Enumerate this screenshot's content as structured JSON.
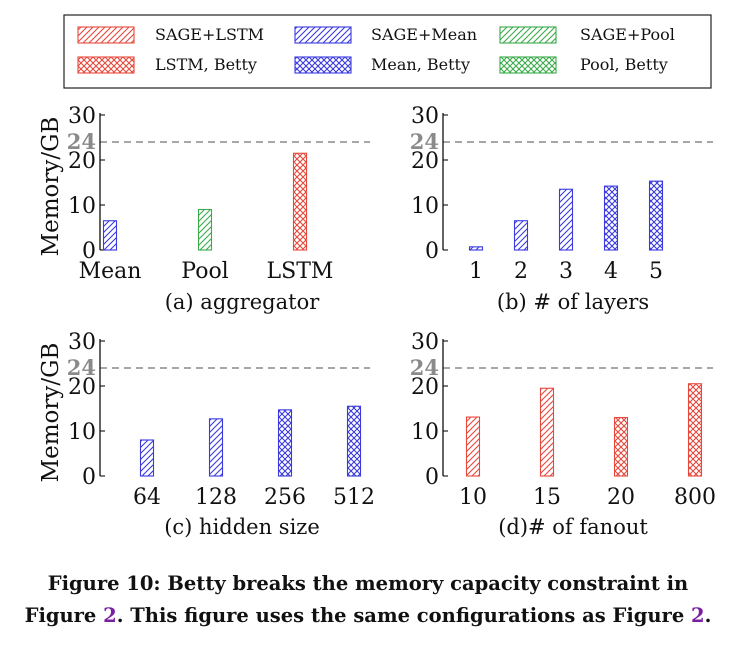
{
  "legend": {
    "items": [
      {
        "label": "SAGE+LSTM",
        "color": "#e8483c",
        "pattern": "diag"
      },
      {
        "label": "SAGE+Mean",
        "color": "#3a3ae0",
        "pattern": "diag"
      },
      {
        "label": "SAGE+Pool",
        "color": "#3aaa4a",
        "pattern": "diag"
      },
      {
        "label": "LSTM, Betty",
        "color": "#e8483c",
        "pattern": "cross"
      },
      {
        "label": "Mean, Betty",
        "color": "#3a3ae0",
        "pattern": "cross"
      },
      {
        "label": "Pool, Betty",
        "color": "#3aaa4a",
        "pattern": "cross"
      }
    ]
  },
  "chart_data": [
    {
      "type": "bar",
      "panel": "a",
      "subtitle": "(a) aggregator",
      "ylabel": "Memory/GB",
      "categories": [
        "Mean",
        "Pool",
        "LSTM"
      ],
      "ylim": [
        0,
        30
      ],
      "yticks": [
        0,
        10,
        20,
        30
      ],
      "capacity_line": 24,
      "bars": [
        {
          "category": "Mean",
          "value": 6.5,
          "color": "#3a3ae0",
          "pattern": "diag"
        },
        {
          "category": "Pool",
          "value": 9,
          "color": "#3aaa4a",
          "pattern": "diag"
        },
        {
          "category": "LSTM",
          "value": 21.5,
          "color": "#e8483c",
          "pattern": "cross"
        }
      ]
    },
    {
      "type": "bar",
      "panel": "b",
      "subtitle": "(b) # of layers",
      "ylabel": "",
      "categories": [
        "1",
        "2",
        "3",
        "4",
        "5"
      ],
      "ylim": [
        0,
        30
      ],
      "yticks": [
        0,
        10,
        20,
        30
      ],
      "capacity_line": 24,
      "bars": [
        {
          "category": "1",
          "value": 0.7,
          "color": "#3a3ae0",
          "pattern": "diag"
        },
        {
          "category": "2",
          "value": 6.5,
          "color": "#3a3ae0",
          "pattern": "diag"
        },
        {
          "category": "3",
          "value": 13.5,
          "color": "#3a3ae0",
          "pattern": "diag"
        },
        {
          "category": "4",
          "value": 14.2,
          "color": "#3a3ae0",
          "pattern": "cross"
        },
        {
          "category": "5",
          "value": 15.3,
          "color": "#3a3ae0",
          "pattern": "cross"
        }
      ]
    },
    {
      "type": "bar",
      "panel": "c",
      "subtitle": "(c) hidden size",
      "ylabel": "Memory/GB",
      "categories": [
        "64",
        "128",
        "256",
        "512"
      ],
      "ylim": [
        0,
        30
      ],
      "yticks": [
        0,
        10,
        20,
        30
      ],
      "capacity_line": 24,
      "bars": [
        {
          "category": "64",
          "value": 8,
          "color": "#3a3ae0",
          "pattern": "diag"
        },
        {
          "category": "128",
          "value": 12.7,
          "color": "#3a3ae0",
          "pattern": "diag"
        },
        {
          "category": "256",
          "value": 14.7,
          "color": "#3a3ae0",
          "pattern": "cross"
        },
        {
          "category": "512",
          "value": 15.5,
          "color": "#3a3ae0",
          "pattern": "cross"
        }
      ]
    },
    {
      "type": "bar",
      "panel": "d",
      "subtitle": "(d)# of fanout",
      "ylabel": "",
      "categories": [
        "10",
        "15",
        "20",
        "800"
      ],
      "ylim": [
        0,
        30
      ],
      "yticks": [
        0,
        10,
        20,
        30
      ],
      "capacity_line": 24,
      "bars": [
        {
          "category": "10",
          "value": 13.1,
          "color": "#e8483c",
          "pattern": "diag"
        },
        {
          "category": "15",
          "value": 19.5,
          "color": "#e8483c",
          "pattern": "diag"
        },
        {
          "category": "20",
          "value": 13,
          "color": "#e8483c",
          "pattern": "cross"
        },
        {
          "category": "800",
          "value": 20.5,
          "color": "#e8483c",
          "pattern": "cross"
        }
      ]
    }
  ],
  "caption": {
    "lead": "Figure 10: Betty breaks the memory capacity constraint in Figure ",
    "ref1": "2",
    "middle": ". This figure uses the same configurations as Figure ",
    "ref2": "2",
    "end": "."
  }
}
